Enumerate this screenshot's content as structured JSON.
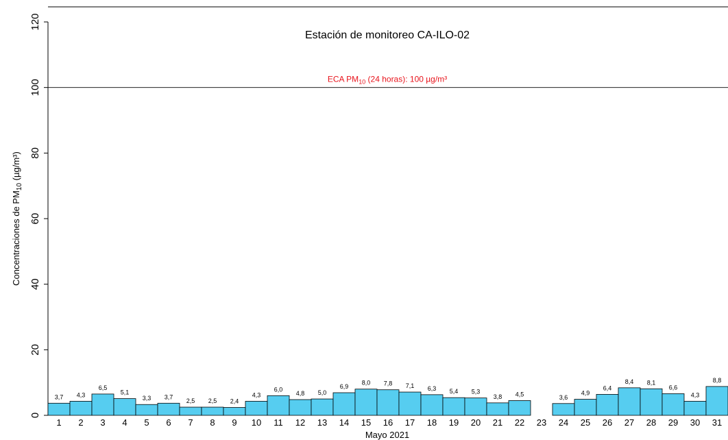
{
  "chart_data": {
    "type": "bar",
    "title": "Estación de monitoreo  CA-ILO-02",
    "x_label": "Mayo 2021",
    "y_label": {
      "text": "Concentraciones de PM",
      "sub": "10",
      "rest": " (µg/m³)"
    },
    "reference_line": {
      "value": 100,
      "text": "ECA PM",
      "sub": "10",
      "rest": " (24 horas): 100 µg/m³",
      "color": "#e8141c"
    },
    "categories": [
      "1",
      "2",
      "3",
      "4",
      "5",
      "6",
      "7",
      "8",
      "9",
      "10",
      "11",
      "12",
      "13",
      "14",
      "15",
      "16",
      "17",
      "18",
      "19",
      "20",
      "21",
      "22",
      "23",
      "24",
      "25",
      "26",
      "27",
      "28",
      "29",
      "30",
      "31"
    ],
    "values": [
      3.7,
      4.3,
      6.5,
      5.1,
      3.3,
      3.7,
      2.5,
      2.5,
      2.4,
      4.3,
      6.0,
      4.8,
      5.0,
      6.9,
      8.0,
      7.8,
      7.1,
      6.3,
      5.4,
      5.3,
      3.8,
      4.5,
      null,
      3.6,
      4.9,
      6.4,
      8.4,
      8.1,
      6.6,
      4.3,
      8.8
    ],
    "value_labels": [
      "3,7",
      "4,3",
      "6,5",
      "5,1",
      "3,3",
      "3,7",
      "2,5",
      "2,5",
      "2,4",
      "4,3",
      "6,0",
      "4,8",
      "5,0",
      "6,9",
      "8,0",
      "7,8",
      "7,1",
      "6,3",
      "5,4",
      "5,3",
      "3,8",
      "4,5",
      null,
      "3,6",
      "4,9",
      "6,4",
      "8,4",
      "8,1",
      "6,6",
      "4,3",
      "8,8"
    ],
    "color": "#56cdf0",
    "ylim": [
      0,
      120
    ],
    "yticks": [
      0,
      20,
      40,
      60,
      80,
      100,
      120
    ]
  }
}
